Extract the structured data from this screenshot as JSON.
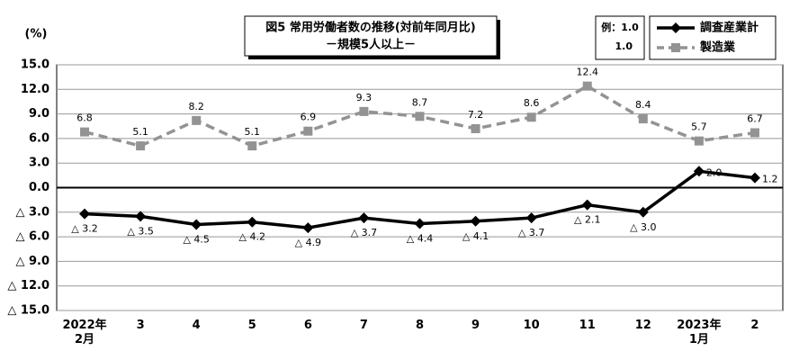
{
  "chart_data": {
    "type": "line",
    "title": "図5 常用労働者数の推移(対前年同月比)",
    "subtitle": "－規模5人以上－",
    "y_label": "(%)",
    "note": [
      "例：1.0",
      "1.0"
    ],
    "categories": [
      "2022年\n2月",
      "3",
      "4",
      "5",
      "6",
      "7",
      "8",
      "9",
      "10",
      "11",
      "12",
      "2023年\n1月",
      "2"
    ],
    "series": [
      {
        "name": "調査産業計",
        "color": "#000000",
        "marker": "diamond",
        "dash": false,
        "values": [
          -3.2,
          -3.5,
          -4.5,
          -4.2,
          -4.9,
          -3.7,
          -4.4,
          -4.1,
          -3.7,
          -2.1,
          -3.0,
          2.0,
          1.2
        ],
        "value_labels": [
          "△ 3.2",
          "△ 3.5",
          "△ 4.5",
          "△ 4.2",
          "△ 4.9",
          "△ 3.7",
          "△ 4.4",
          "△ 4.1",
          "△ 3.7",
          "△ 2.1",
          "△ 3.0",
          "2.0",
          "1.2"
        ]
      },
      {
        "name": "製造業",
        "color": "#939393",
        "marker": "square",
        "dash": true,
        "values": [
          6.8,
          5.1,
          8.2,
          5.1,
          6.9,
          9.3,
          8.7,
          7.2,
          8.6,
          12.4,
          8.4,
          5.7,
          6.7
        ]
      }
    ],
    "ylim": [
      -15,
      15
    ],
    "yticks": [
      {
        "value": 15,
        "label": "15.0"
      },
      {
        "value": 12,
        "label": "12.0"
      },
      {
        "value": 9,
        "label": "9.0"
      },
      {
        "value": 6,
        "label": "6.0"
      },
      {
        "value": 3,
        "label": "3.0"
      },
      {
        "value": 0,
        "label": "0.0"
      },
      {
        "value": -3,
        "label": "△ 3.0"
      },
      {
        "value": -6,
        "label": "△ 6.0"
      },
      {
        "value": -9,
        "label": "△ 9.0"
      },
      {
        "value": -12,
        "label": "△ 12.0"
      },
      {
        "value": -15,
        "label": "△ 15.0"
      }
    ],
    "grid": true
  }
}
